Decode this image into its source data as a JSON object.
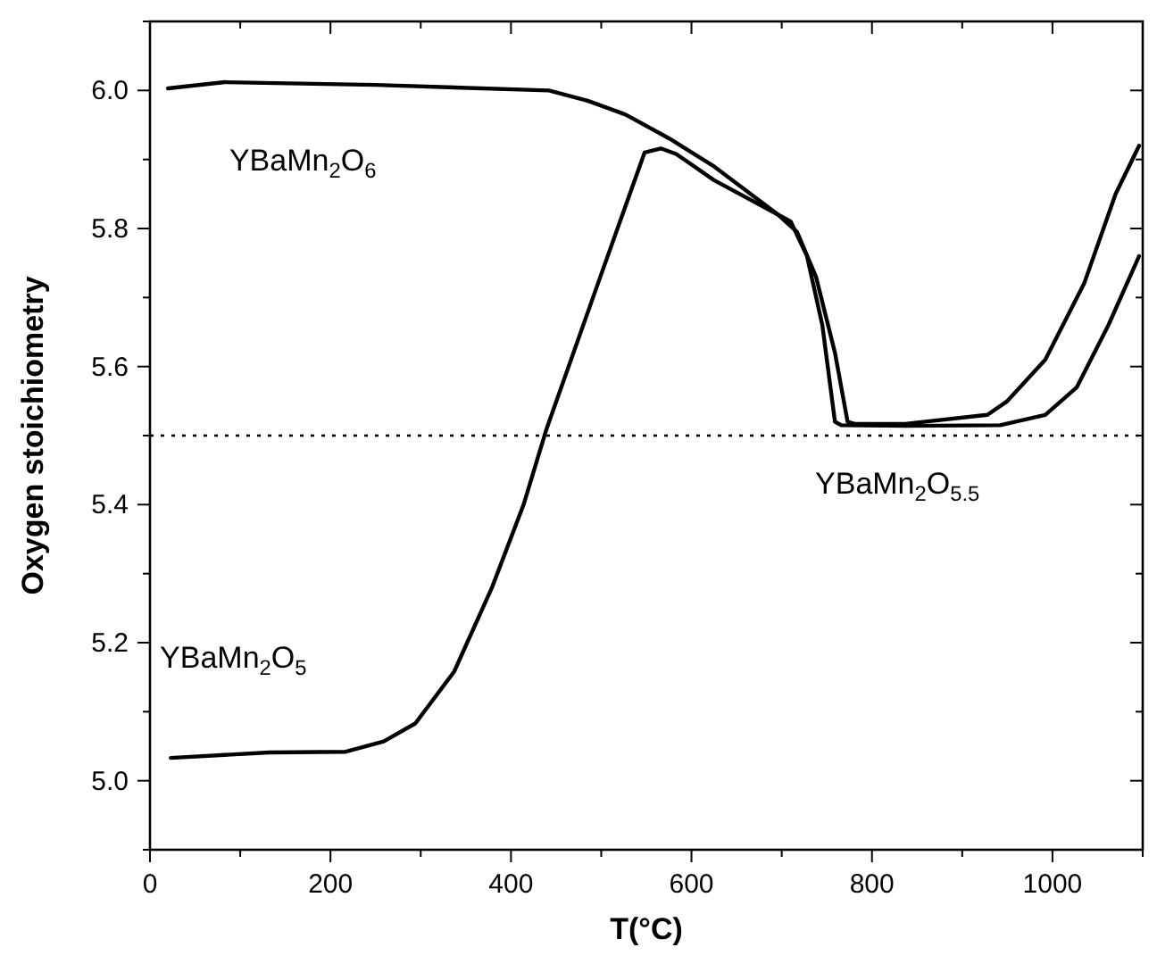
{
  "chart_data": {
    "type": "line",
    "xlabel": "T(°C)",
    "ylabel": "Oxygen stoichiometry",
    "xlim": [
      0,
      1100
    ],
    "ylim": [
      4.9,
      6.1
    ],
    "grid": false,
    "line_style": "solid",
    "xticks": [
      0,
      {
        "value": 100,
        "label": null
      },
      200,
      {
        "value": 300,
        "label": null
      },
      400,
      {
        "value": 500,
        "label": null
      },
      600,
      {
        "value": 700,
        "label": null
      },
      800,
      {
        "value": 900,
        "label": null
      },
      1000,
      {
        "value": 1100,
        "label": null
      }
    ],
    "yticks": [
      {
        "value": 4.9,
        "label": null
      },
      {
        "value": 5.0,
        "label": "5.0"
      },
      {
        "value": 5.1,
        "label": null
      },
      {
        "value": 5.2,
        "label": "5.2"
      },
      {
        "value": 5.3,
        "label": null
      },
      {
        "value": 5.4,
        "label": "5.4"
      },
      {
        "value": 5.5,
        "label": null
      },
      {
        "value": 5.6,
        "label": "5.6"
      },
      {
        "value": 5.7,
        "label": null
      },
      {
        "value": 5.8,
        "label": "5.8"
      },
      {
        "value": 5.9,
        "label": null
      },
      {
        "value": 6.0,
        "label": "6.0"
      },
      {
        "value": 6.1,
        "label": null
      }
    ],
    "series": [
      {
        "color": "#000000",
        "x": [
          20,
          83,
          250,
          442,
          485,
          527,
          576,
          625,
          696,
          717,
          738,
          759,
          773,
          781,
          837,
          928,
          950,
          992,
          1035,
          1070,
          1096
        ],
        "values": [
          6.003,
          6.012,
          6.008,
          6.0,
          5.985,
          5.965,
          5.93,
          5.89,
          5.82,
          5.795,
          5.73,
          5.62,
          5.52,
          5.517,
          5.517,
          5.53,
          5.55,
          5.61,
          5.72,
          5.85,
          5.92
        ]
      },
      {
        "color": "#000000",
        "x": [
          23,
          132,
          217,
          259,
          294,
          337,
          379,
          414,
          439,
          499,
          548,
          566,
          583,
          625,
          696,
          710,
          728,
          745,
          759,
          766,
          837,
          942,
          992,
          1027,
          1062,
          1096
        ],
        "values": [
          5.033,
          5.041,
          5.042,
          5.057,
          5.083,
          5.158,
          5.28,
          5.4,
          5.508,
          5.73,
          5.91,
          5.916,
          5.908,
          5.87,
          5.82,
          5.81,
          5.76,
          5.66,
          5.52,
          5.515,
          5.514,
          5.515,
          5.53,
          5.57,
          5.66,
          5.76
        ]
      }
    ],
    "ref_lines": [
      {
        "axis": "y",
        "value": 5.5,
        "color": "#000000",
        "line_style": "dotted"
      }
    ],
    "annotations": [
      "YBaMn$_{2}$O$_{6}$",
      "YBaMn$_{2}$O$_{5}$",
      "YBaMn$_{2}$O$_{5.5}$"
    ]
  }
}
